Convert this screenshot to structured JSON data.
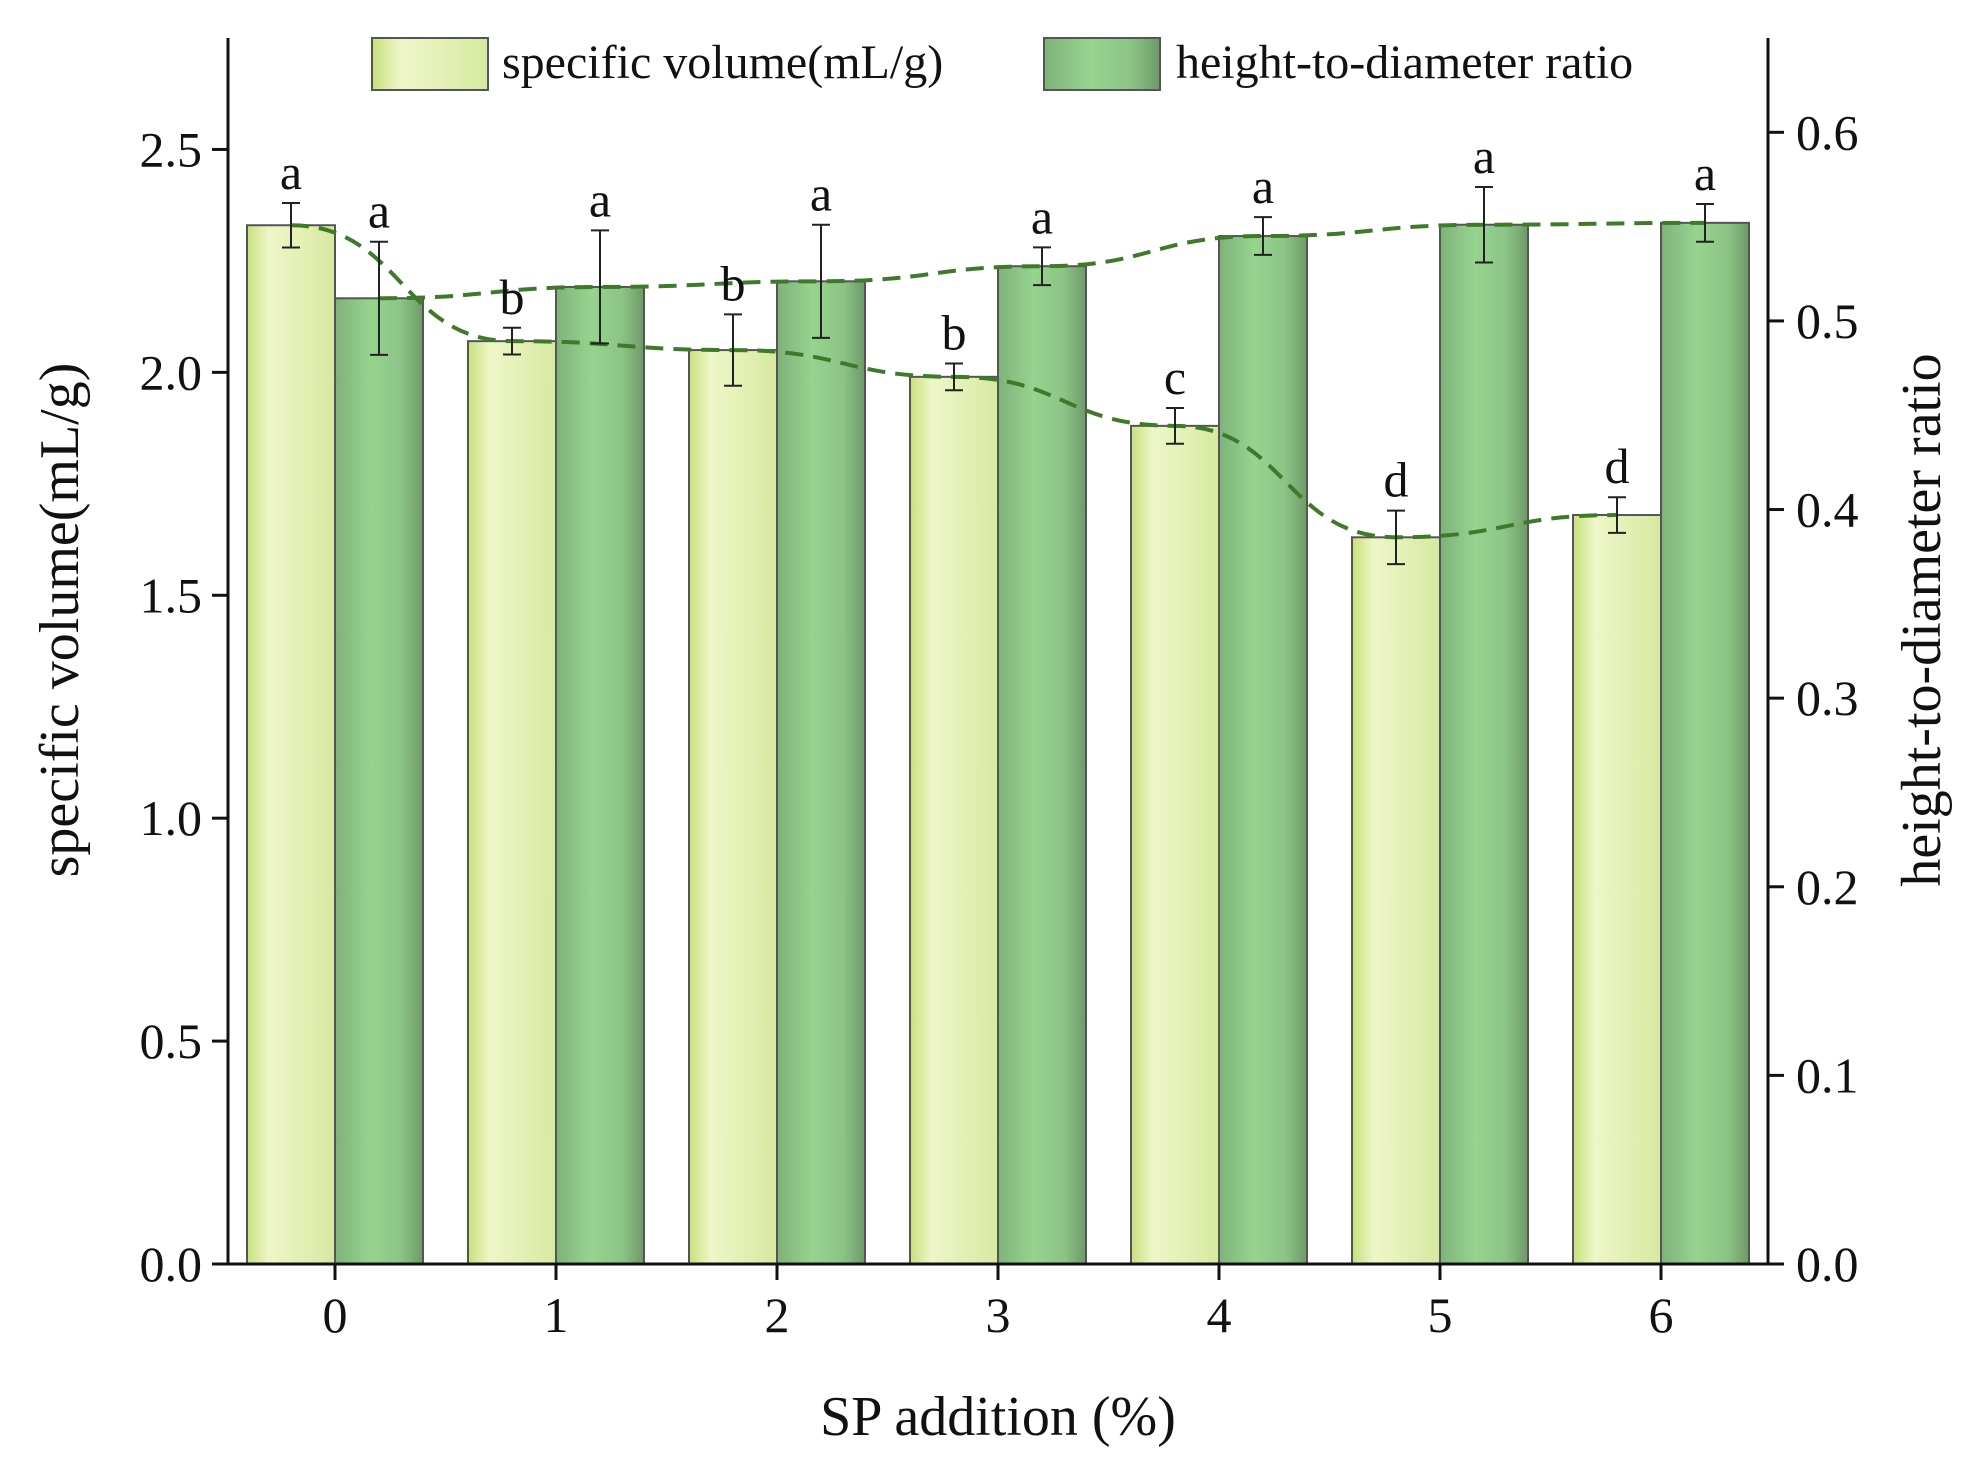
{
  "chart_data": {
    "type": "bar",
    "xlabel": "SP addition (%)",
    "ylabel": "specific volume(mL/g)",
    "ylabel_right": "height-to-diameter ratio",
    "categories": [
      "0",
      "1",
      "2",
      "3",
      "4",
      "5",
      "6"
    ],
    "ylim": [
      0,
      2.75
    ],
    "ylim_right": [
      0,
      0.65
    ],
    "yticks": [
      "0.0",
      "0.5",
      "1.0",
      "1.5",
      "2.0",
      "2.5"
    ],
    "yticks_right": [
      "0.0",
      "0.1",
      "0.2",
      "0.3",
      "0.4",
      "0.5",
      "0.6"
    ],
    "legend_position": "top",
    "series": [
      {
        "name": "specific volume(mL/g)",
        "axis": "left",
        "values": [
          2.33,
          2.07,
          2.05,
          1.99,
          1.88,
          1.63,
          1.68
        ],
        "errors": [
          0.05,
          0.03,
          0.08,
          0.03,
          0.04,
          0.06,
          0.04
        ],
        "letters": [
          "a",
          "b",
          "b",
          "b",
          "c",
          "d",
          "d"
        ],
        "color": "#e3f0b4",
        "trend_line": true
      },
      {
        "name": "height-to-diameter ratio",
        "axis": "right",
        "values": [
          0.512,
          0.518,
          0.521,
          0.529,
          0.545,
          0.551,
          0.552
        ],
        "errors": [
          0.03,
          0.03,
          0.03,
          0.01,
          0.01,
          0.02,
          0.01
        ],
        "letters": [
          "a",
          "a",
          "a",
          "a",
          "a",
          "a",
          "a"
        ],
        "color": "#8fcf8a",
        "trend_line": true
      }
    ],
    "trend_color": "#3e7a2a"
  }
}
